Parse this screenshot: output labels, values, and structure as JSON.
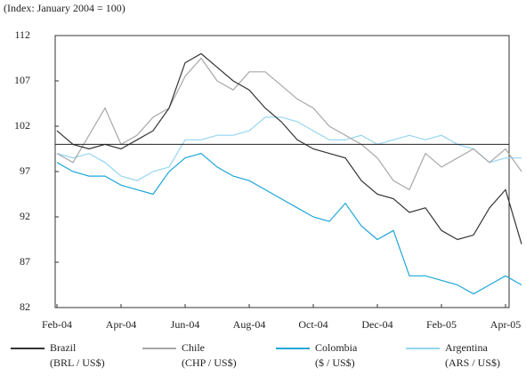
{
  "chart_data": {
    "type": "line",
    "subtitle": "(Index: January 2004 = 100)",
    "categories": [
      "Feb-04",
      null,
      null,
      null,
      "Apr-04",
      null,
      null,
      null,
      "Jun-04",
      null,
      null,
      null,
      "Aug-04",
      null,
      null,
      null,
      "Oct-04",
      null,
      null,
      null,
      "Dec-04",
      null,
      null,
      null,
      "Feb-05",
      null,
      null,
      null,
      "Apr-05",
      null
    ],
    "ylim": [
      82,
      112
    ],
    "yticks": [
      82,
      87,
      92,
      97,
      102,
      107,
      112
    ],
    "reference_line": 100,
    "series": [
      {
        "name": "Brazil",
        "unit": "(BRL / US$)",
        "color": "#333333",
        "values": [
          101.5,
          100,
          99.5,
          100,
          99.5,
          100.5,
          101.5,
          104,
          109,
          110,
          108.5,
          107,
          106,
          104,
          102.5,
          100.5,
          99.5,
          99,
          98.5,
          96,
          94.5,
          94,
          92.5,
          93,
          90.5,
          89.5,
          90,
          93,
          95,
          89
        ]
      },
      {
        "name": "Chile",
        "unit": "(CHP / US$)",
        "color": "#a8a8a8",
        "values": [
          99,
          98,
          101,
          104,
          100,
          101,
          103,
          104,
          107.5,
          109.5,
          107,
          106,
          108,
          108,
          106.5,
          105,
          104,
          102,
          101,
          100,
          98.5,
          96,
          95,
          99,
          97.5,
          98.5,
          99.5,
          98,
          99.5,
          97
        ]
      },
      {
        "name": "Colombia",
        "unit": "($ / US$)",
        "color": "#1ea6da",
        "values": [
          98,
          97,
          96.5,
          96.5,
          95.5,
          95,
          94.5,
          97,
          98.5,
          99,
          97.5,
          96.5,
          96,
          95,
          94,
          93,
          92,
          91.5,
          93.5,
          91,
          89.5,
          90.5,
          85.5,
          85.5,
          85,
          84.5,
          83.5,
          84.5,
          85.5,
          84.5
        ]
      },
      {
        "name": "Argentina",
        "unit": "(ARS / US$)",
        "color": "#94d5f0",
        "values": [
          99,
          98.5,
          99,
          98,
          96.5,
          96,
          97,
          97.5,
          100.5,
          100.5,
          101,
          101,
          101.5,
          103,
          103,
          102.5,
          101.5,
          100.5,
          100.5,
          101,
          100,
          100.5,
          101,
          100.5,
          101,
          100,
          99.5,
          98,
          98.5,
          98.5
        ]
      }
    ]
  }
}
